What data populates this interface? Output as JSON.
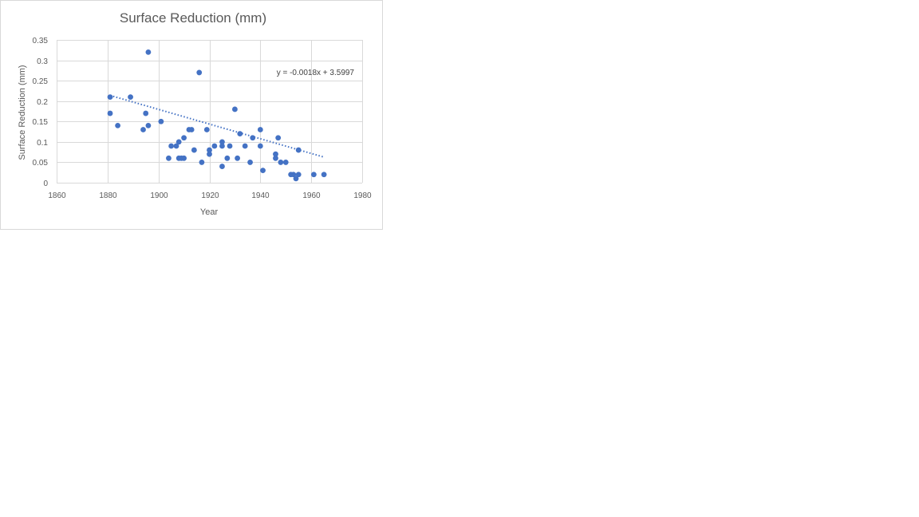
{
  "chart_data": {
    "type": "scatter",
    "title": "Surface Reduction (mm)",
    "xlabel": "Year",
    "ylabel": "Surface Reduction (mm)",
    "xlim": [
      1860,
      1980
    ],
    "ylim": [
      0,
      0.35
    ],
    "x_ticks": [
      1860,
      1880,
      1900,
      1920,
      1940,
      1960,
      1980
    ],
    "y_ticks": [
      0,
      0.05,
      0.1,
      0.15,
      0.2,
      0.25,
      0.3,
      0.35
    ],
    "x_tick_labels": [
      "1860",
      "1880",
      "1900",
      "1920",
      "1940",
      "1960",
      "1980"
    ],
    "y_tick_labels": [
      "0",
      "0.05",
      "0.1",
      "0.15",
      "0.2",
      "0.25",
      "0.3",
      "0.35"
    ],
    "grid": true,
    "legend": "none",
    "series_color": "#4472c4",
    "points": [
      {
        "x": 1881,
        "y": 0.21
      },
      {
        "x": 1881,
        "y": 0.17
      },
      {
        "x": 1884,
        "y": 0.14
      },
      {
        "x": 1889,
        "y": 0.21
      },
      {
        "x": 1894,
        "y": 0.13
      },
      {
        "x": 1895,
        "y": 0.17
      },
      {
        "x": 1896,
        "y": 0.32
      },
      {
        "x": 1896,
        "y": 0.14
      },
      {
        "x": 1901,
        "y": 0.15
      },
      {
        "x": 1904,
        "y": 0.06
      },
      {
        "x": 1905,
        "y": 0.09
      },
      {
        "x": 1907,
        "y": 0.09
      },
      {
        "x": 1908,
        "y": 0.1
      },
      {
        "x": 1908,
        "y": 0.06
      },
      {
        "x": 1909,
        "y": 0.06
      },
      {
        "x": 1910,
        "y": 0.06
      },
      {
        "x": 1910,
        "y": 0.11
      },
      {
        "x": 1912,
        "y": 0.13
      },
      {
        "x": 1913,
        "y": 0.13
      },
      {
        "x": 1914,
        "y": 0.08
      },
      {
        "x": 1916,
        "y": 0.27
      },
      {
        "x": 1917,
        "y": 0.05
      },
      {
        "x": 1919,
        "y": 0.13
      },
      {
        "x": 1920,
        "y": 0.07
      },
      {
        "x": 1920,
        "y": 0.08
      },
      {
        "x": 1922,
        "y": 0.09
      },
      {
        "x": 1925,
        "y": 0.1
      },
      {
        "x": 1925,
        "y": 0.09
      },
      {
        "x": 1925,
        "y": 0.04
      },
      {
        "x": 1927,
        "y": 0.06
      },
      {
        "x": 1928,
        "y": 0.09
      },
      {
        "x": 1930,
        "y": 0.18
      },
      {
        "x": 1931,
        "y": 0.06
      },
      {
        "x": 1932,
        "y": 0.12
      },
      {
        "x": 1934,
        "y": 0.09
      },
      {
        "x": 1936,
        "y": 0.05
      },
      {
        "x": 1937,
        "y": 0.11
      },
      {
        "x": 1940,
        "y": 0.13
      },
      {
        "x": 1940,
        "y": 0.09
      },
      {
        "x": 1941,
        "y": 0.03
      },
      {
        "x": 1946,
        "y": 0.07
      },
      {
        "x": 1946,
        "y": 0.06
      },
      {
        "x": 1947,
        "y": 0.11
      },
      {
        "x": 1948,
        "y": 0.05
      },
      {
        "x": 1950,
        "y": 0.05
      },
      {
        "x": 1952,
        "y": 0.02
      },
      {
        "x": 1953,
        "y": 0.02
      },
      {
        "x": 1954,
        "y": 0.01
      },
      {
        "x": 1955,
        "y": 0.02
      },
      {
        "x": 1955,
        "y": 0.08
      },
      {
        "x": 1961,
        "y": 0.02
      },
      {
        "x": 1965,
        "y": 0.02
      }
    ],
    "trendline": {
      "type": "linear",
      "slope": -0.0018,
      "intercept": 3.5997,
      "x_range": [
        1881,
        1965
      ],
      "equation_label": "y = -0.0018x + 3.5997"
    }
  }
}
